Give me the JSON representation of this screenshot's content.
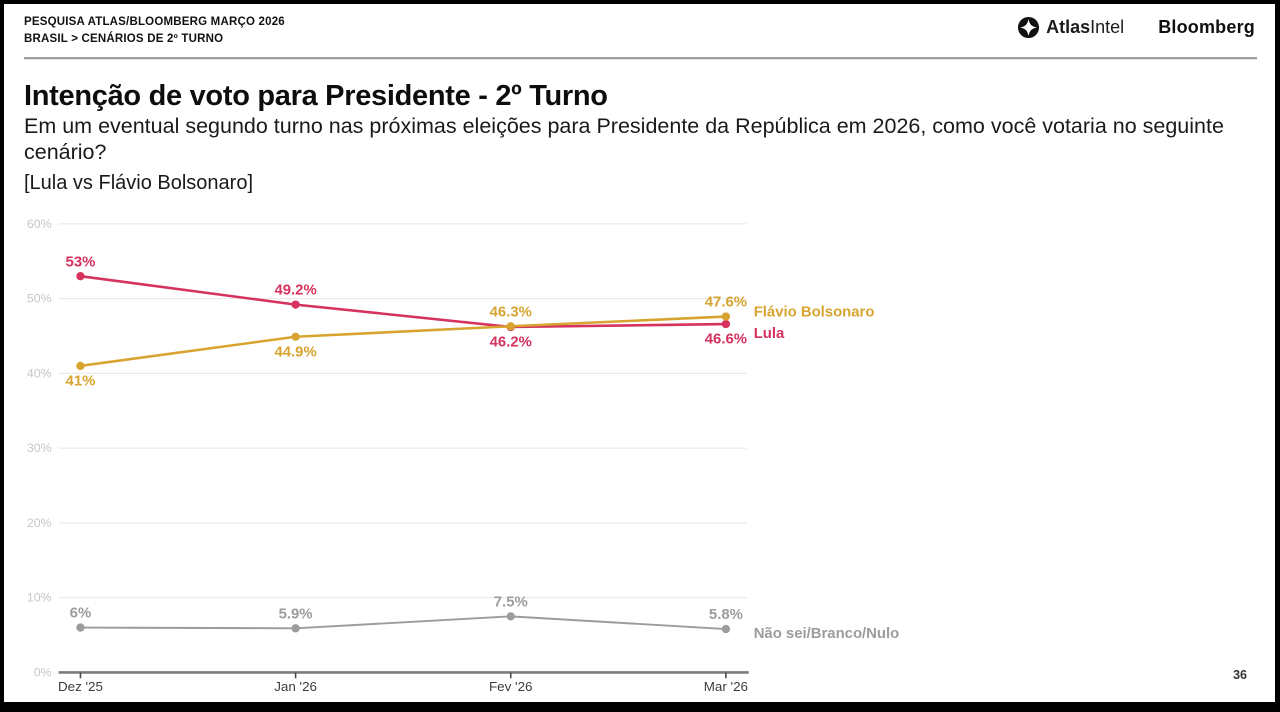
{
  "header": {
    "line1": "PESQUISA ATLAS/BLOOMBERG MARÇO 2026",
    "line2": "BRASIL > CENÁRIOS DE 2º TURNO",
    "logos": {
      "atlasintel_bold": "Atlas",
      "atlasintel_light": "Intel",
      "bloomberg": "Bloomberg"
    }
  },
  "title": "Intenção de voto para Presidente - 2º Turno",
  "subtitle": "Em um eventual segundo turno nas próximas eleições para Presidente da República em 2026, como você votaria no seguinte cenário?",
  "scenario": "[Lula vs Flávio Bolsonaro]",
  "page_number": "36",
  "chart_data": {
    "type": "line",
    "title": "Intenção de voto para Presidente - 2º Turno [Lula vs Flávio Bolsonaro]",
    "x": [
      "Dez '25",
      "Jan '26",
      "Fev '26",
      "Mar '26"
    ],
    "series": [
      {
        "name": "Lula",
        "values": [
          53,
          49.2,
          46.2,
          46.6
        ],
        "labels": [
          "53%",
          "49.2%",
          "46.2%",
          "46.6%"
        ],
        "color": "#D5325E"
      },
      {
        "name": "Flávio Bolsonaro",
        "values": [
          41,
          44.9,
          46.3,
          47.6
        ],
        "labels": [
          "41%",
          "44.9%",
          "46.3%",
          "47.6%"
        ],
        "color": "#D8A430"
      },
      {
        "name": "Não sei/Branco/Nulo",
        "values": [
          6,
          5.9,
          7.5,
          5.8
        ],
        "labels": [
          "6%",
          "5.9%",
          "7.5%",
          "5.8%"
        ],
        "color": "#9C9C9C"
      }
    ],
    "ylim": [
      0,
      60
    ],
    "yticks": [
      "0%",
      "10%",
      "20%",
      "30%",
      "40%",
      "50%",
      "60%"
    ],
    "grid": true,
    "legend_position": "right",
    "colors": {
      "gridline": "#EBEBEB",
      "ytick_label": "#C6C6C6",
      "xtick_label": "#3C3C3C",
      "axis_line": "#7C7C7C",
      "tick_mark": "#4A4A4A"
    }
  }
}
